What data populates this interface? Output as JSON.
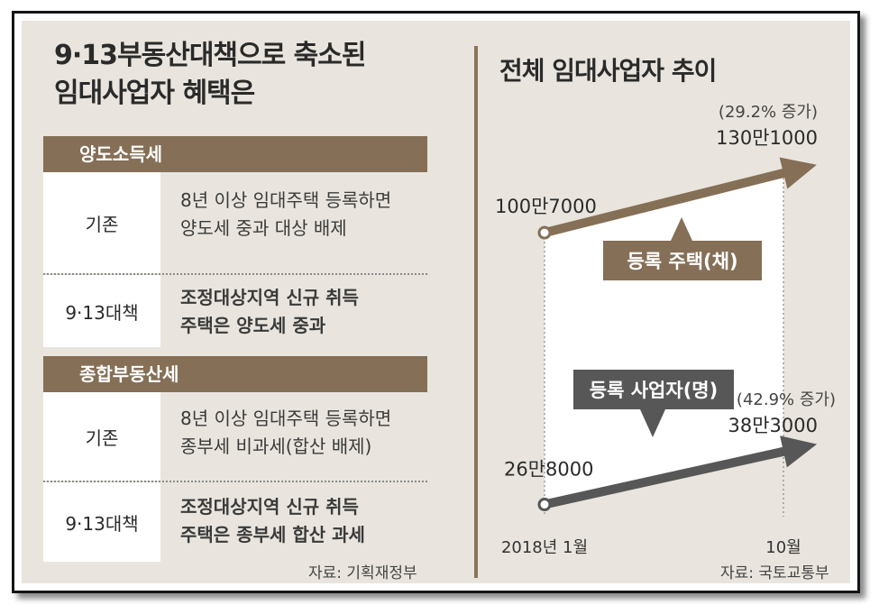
{
  "left": {
    "title_line1": "9·13부동산대책으로 축소된",
    "title_line2": "임대사업자 혜택은",
    "sections": [
      {
        "header": "양도소득세",
        "rows": [
          {
            "label": "기존",
            "line1": "8년 이상 임대주택 등록하면",
            "line2": "양도세 중과 대상 배제"
          },
          {
            "label": "9·13대책",
            "line1": "조정대상지역 신규 취득",
            "line2": "주택은 양도세 중과"
          }
        ]
      },
      {
        "header": "종합부동산세",
        "rows": [
          {
            "label": "기존",
            "line1": "8년 이상 임대주택 등록하면",
            "line2": "종부세 비과세(합산 배제)"
          },
          {
            "label": "9·13대책",
            "line1": "조정대상지역 신규 취득",
            "line2": "주택은 종부세 합산 과세"
          }
        ]
      }
    ],
    "source": "자료: 기획재정부"
  },
  "right": {
    "source": "자료: 국토교통부"
  },
  "colors": {
    "brown": "#856f56",
    "dark": "#575757",
    "panel": "#e9e5de"
  },
  "chart_data": {
    "type": "line",
    "title": "전체 임대사업자 추이",
    "x": [
      "2018년 1월",
      "10월"
    ],
    "series": [
      {
        "name": "등록 주택(채)",
        "values": [
          1007000,
          1301000
        ],
        "labels": [
          "100만7000",
          "130만1000"
        ],
        "change": "(29.2% 증가)",
        "color": "#856f56"
      },
      {
        "name": "등록 사업자(명)",
        "values": [
          268000,
          383000
        ],
        "labels": [
          "26만8000",
          "38만3000"
        ],
        "change": "(42.9% 증가)",
        "color": "#575757"
      }
    ]
  }
}
